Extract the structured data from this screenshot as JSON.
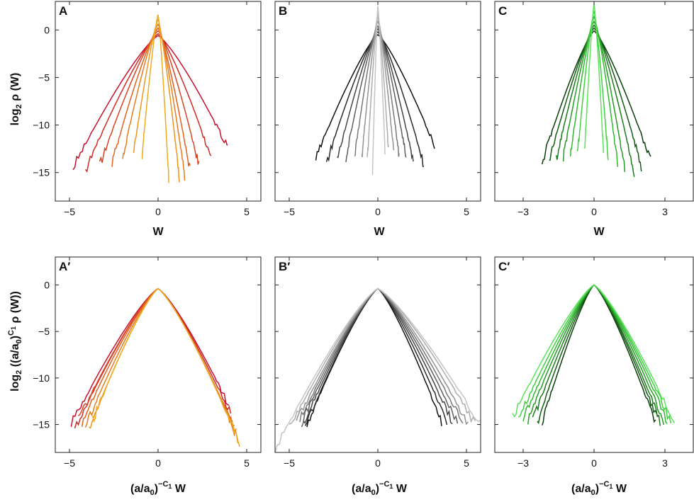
{
  "panels": [
    {
      "id": "A",
      "label": "A",
      "type": "line",
      "xlim": [
        -5.8,
        5.8
      ],
      "ylim": [
        -18,
        3
      ],
      "xticks": [
        -5,
        0,
        5
      ],
      "yticks": [
        0,
        -5,
        -10,
        -15
      ],
      "xlabel": "W",
      "colors": [
        "#c8102e",
        "#d02a22",
        "#d84420",
        "#e0601e",
        "#e57c1c",
        "#ea961c",
        "#eeaa20"
      ],
      "curves": [
        {
          "peak": -0.6,
          "wl": 4.8,
          "wr": 3.9,
          "endl": -14.5,
          "endr": -12.3
        },
        {
          "peak": -0.4,
          "wl": 4.1,
          "wr": 3.0,
          "endl": -14.8,
          "endr": -13.5
        },
        {
          "peak": -0.1,
          "wl": 3.3,
          "wr": 2.3,
          "endl": -14.3,
          "endr": -14.2
        },
        {
          "peak": 0.2,
          "wl": 2.6,
          "wr": 1.8,
          "endl": -14.0,
          "endr": -14.8
        },
        {
          "peak": 0.6,
          "wl": 2.0,
          "wr": 1.5,
          "endl": -13.5,
          "endr": -15.3
        },
        {
          "peak": 1.1,
          "wl": 1.4,
          "wr": 1.2,
          "endl": -13.2,
          "endr": -15.6
        },
        {
          "peak": 1.6,
          "wl": 0.9,
          "wr": 0.6,
          "endl": -13.0,
          "endr": -15.8
        }
      ]
    },
    {
      "id": "B",
      "label": "B",
      "type": "line",
      "xlim": [
        -5.8,
        5.8
      ],
      "ylim": [
        -18,
        3
      ],
      "xticks": [
        -5,
        0,
        5
      ],
      "yticks": [
        0,
        -5,
        -10,
        -15
      ],
      "xlabel": "W",
      "colors": [
        "#111111",
        "#2a2a2a",
        "#444444",
        "#5e5e5e",
        "#787878",
        "#929292",
        "#acacac",
        "#c4c4c4"
      ],
      "curves": [
        {
          "peak": -0.5,
          "wl": 3.5,
          "wr": 3.2,
          "endl": -13.5,
          "endr": -12.2
        },
        {
          "peak": -0.2,
          "wl": 2.9,
          "wr": 2.6,
          "endl": -14.0,
          "endr": -14.2
        },
        {
          "peak": 0.1,
          "wl": 2.3,
          "wr": 2.0,
          "endl": -13.8,
          "endr": -13.8
        },
        {
          "peak": 0.4,
          "wl": 1.8,
          "wr": 1.6,
          "endl": -13.5,
          "endr": -13.5
        },
        {
          "peak": 0.9,
          "wl": 1.3,
          "wr": 1.2,
          "endl": -13.2,
          "endr": -13.2
        },
        {
          "peak": 1.4,
          "wl": 0.9,
          "wr": 0.9,
          "endl": -13.3,
          "endr": -13.0
        },
        {
          "peak": 1.9,
          "wl": 0.6,
          "wr": 0.6,
          "endl": -14.0,
          "endr": -12.6
        },
        {
          "peak": 2.5,
          "wl": 0.3,
          "wr": 0.4,
          "endl": -15.0,
          "endr": -12.5
        }
      ]
    },
    {
      "id": "C",
      "label": "C",
      "type": "line",
      "xlim": [
        -4.2,
        4.2
      ],
      "ylim": [
        -18,
        3
      ],
      "xticks": [
        -3,
        0,
        3
      ],
      "yticks": [
        0,
        -5,
        -10,
        -15
      ],
      "xlabel": "W",
      "colors": [
        "#0a3d0a",
        "#135a13",
        "#1c7a1c",
        "#259a25",
        "#2eb82e",
        "#3fd03f",
        "#5ae35a"
      ],
      "curves": [
        {
          "peak": -0.1,
          "wl": 2.2,
          "wr": 2.4,
          "endl": -13.9,
          "endr": -13.8
        },
        {
          "peak": 0.2,
          "wl": 1.9,
          "wr": 2.0,
          "endl": -13.8,
          "endr": -14.3
        },
        {
          "peak": 0.5,
          "wl": 1.6,
          "wr": 1.7,
          "endl": -13.6,
          "endr": -15.0
        },
        {
          "peak": 0.9,
          "wl": 1.3,
          "wr": 1.3,
          "endl": -13.4,
          "endr": -14.6
        },
        {
          "peak": 1.4,
          "wl": 1.0,
          "wr": 1.0,
          "endl": -13.2,
          "endr": -14.2
        },
        {
          "peak": 2.0,
          "wl": 0.7,
          "wr": 0.6,
          "endl": -13.0,
          "endr": -13.6
        },
        {
          "peak": 2.7,
          "wl": 0.4,
          "wr": 0.4,
          "endl": -12.9,
          "endr": -13.0
        }
      ]
    },
    {
      "id": "A2",
      "label": "A′",
      "type": "line",
      "xlim": [
        -5.8,
        5.8
      ],
      "ylim": [
        -18,
        3
      ],
      "xticks": [
        -5,
        0,
        5
      ],
      "yticks": [
        0,
        -5,
        -10,
        -15
      ],
      "colors": [
        "#c8102e",
        "#d02a22",
        "#d84420",
        "#e0601e",
        "#e57c1c",
        "#ea961c",
        "#eeaa20"
      ],
      "curves": [
        {
          "peak": -0.4,
          "wl": 4.9,
          "wr": 4.0,
          "endl": -15.0,
          "endr": -13.0
        },
        {
          "peak": -0.4,
          "wl": 4.7,
          "wr": 4.1,
          "endl": -15.5,
          "endr": -14.0
        },
        {
          "peak": -0.4,
          "wl": 4.5,
          "wr": 4.2,
          "endl": -14.5,
          "endr": -15.0
        },
        {
          "peak": -0.4,
          "wl": 4.3,
          "wr": 4.3,
          "endl": -14.8,
          "endr": -15.5
        },
        {
          "peak": -0.4,
          "wl": 4.1,
          "wr": 4.4,
          "endl": -15.2,
          "endr": -16.0
        },
        {
          "peak": -0.4,
          "wl": 3.9,
          "wr": 4.5,
          "endl": -15.5,
          "endr": -16.5
        },
        {
          "peak": -0.4,
          "wl": 3.7,
          "wr": 4.6,
          "endl": -14.6,
          "endr": -17.0
        }
      ]
    },
    {
      "id": "B2",
      "label": "B′",
      "type": "line",
      "xlim": [
        -5.8,
        5.8
      ],
      "ylim": [
        -18,
        3
      ],
      "xticks": [
        -5,
        0,
        5
      ],
      "yticks": [
        0,
        -5,
        -10,
        -15
      ],
      "colors": [
        "#111111",
        "#2a2a2a",
        "#444444",
        "#5e5e5e",
        "#787878",
        "#929292",
        "#acacac",
        "#c4c4c4"
      ],
      "curves": [
        {
          "peak": -0.4,
          "wl": 4.0,
          "wr": 3.6,
          "endl": -15.0,
          "endr": -14.8
        },
        {
          "peak": -0.4,
          "wl": 4.1,
          "wr": 3.9,
          "endl": -15.2,
          "endr": -14.8
        },
        {
          "peak": -0.4,
          "wl": 4.2,
          "wr": 4.2,
          "endl": -15.0,
          "endr": -14.8
        },
        {
          "peak": -0.4,
          "wl": 4.3,
          "wr": 4.5,
          "endl": -14.8,
          "endr": -14.9
        },
        {
          "peak": -0.4,
          "wl": 4.4,
          "wr": 4.8,
          "endl": -14.6,
          "endr": -15.0
        },
        {
          "peak": -0.4,
          "wl": 4.6,
          "wr": 5.1,
          "endl": -14.8,
          "endr": -15.0
        },
        {
          "peak": -0.4,
          "wl": 5.0,
          "wr": 5.5,
          "endl": -15.5,
          "endr": -15.0
        },
        {
          "peak": -0.4,
          "wl": 5.8,
          "wr": 5.8,
          "endl": -17.7,
          "endr": -15.1
        }
      ]
    },
    {
      "id": "C2",
      "label": "C′",
      "type": "line",
      "xlim": [
        -4.2,
        4.2
      ],
      "ylim": [
        -18,
        3
      ],
      "xticks": [
        -3,
        0,
        3
      ],
      "yticks": [
        0,
        -5,
        -10,
        -15
      ],
      "colors": [
        "#0a3d0a",
        "#135a13",
        "#1c7a1c",
        "#259a25",
        "#2eb82e",
        "#3fd03f",
        "#5ae35a"
      ],
      "curves": [
        {
          "peak": 0.0,
          "wl": 2.2,
          "wr": 2.6,
          "endl": -14.8,
          "endr": -14.9
        },
        {
          "peak": 0.0,
          "wl": 2.4,
          "wr": 2.7,
          "endl": -14.7,
          "endr": -14.7
        },
        {
          "peak": 0.0,
          "wl": 2.6,
          "wr": 2.8,
          "endl": -14.6,
          "endr": -14.6
        },
        {
          "peak": 0.0,
          "wl": 2.8,
          "wr": 2.95,
          "endl": -14.5,
          "endr": -14.6
        },
        {
          "peak": 0.0,
          "wl": 3.0,
          "wr": 3.1,
          "endl": -14.5,
          "endr": -14.6
        },
        {
          "peak": 0.0,
          "wl": 3.2,
          "wr": 3.25,
          "endl": -14.4,
          "endr": -14.7
        },
        {
          "peak": 0.0,
          "wl": 3.45,
          "wr": 3.4,
          "endl": -14.3,
          "endr": -14.8
        }
      ]
    }
  ],
  "row_labels": {
    "top_y": "log₂ ρ (W)",
    "bottom_y": "log₂ ((a/a₀)^C₁ ρ (W))",
    "bottom_x": "(a/a₀)^−C₁ W"
  }
}
